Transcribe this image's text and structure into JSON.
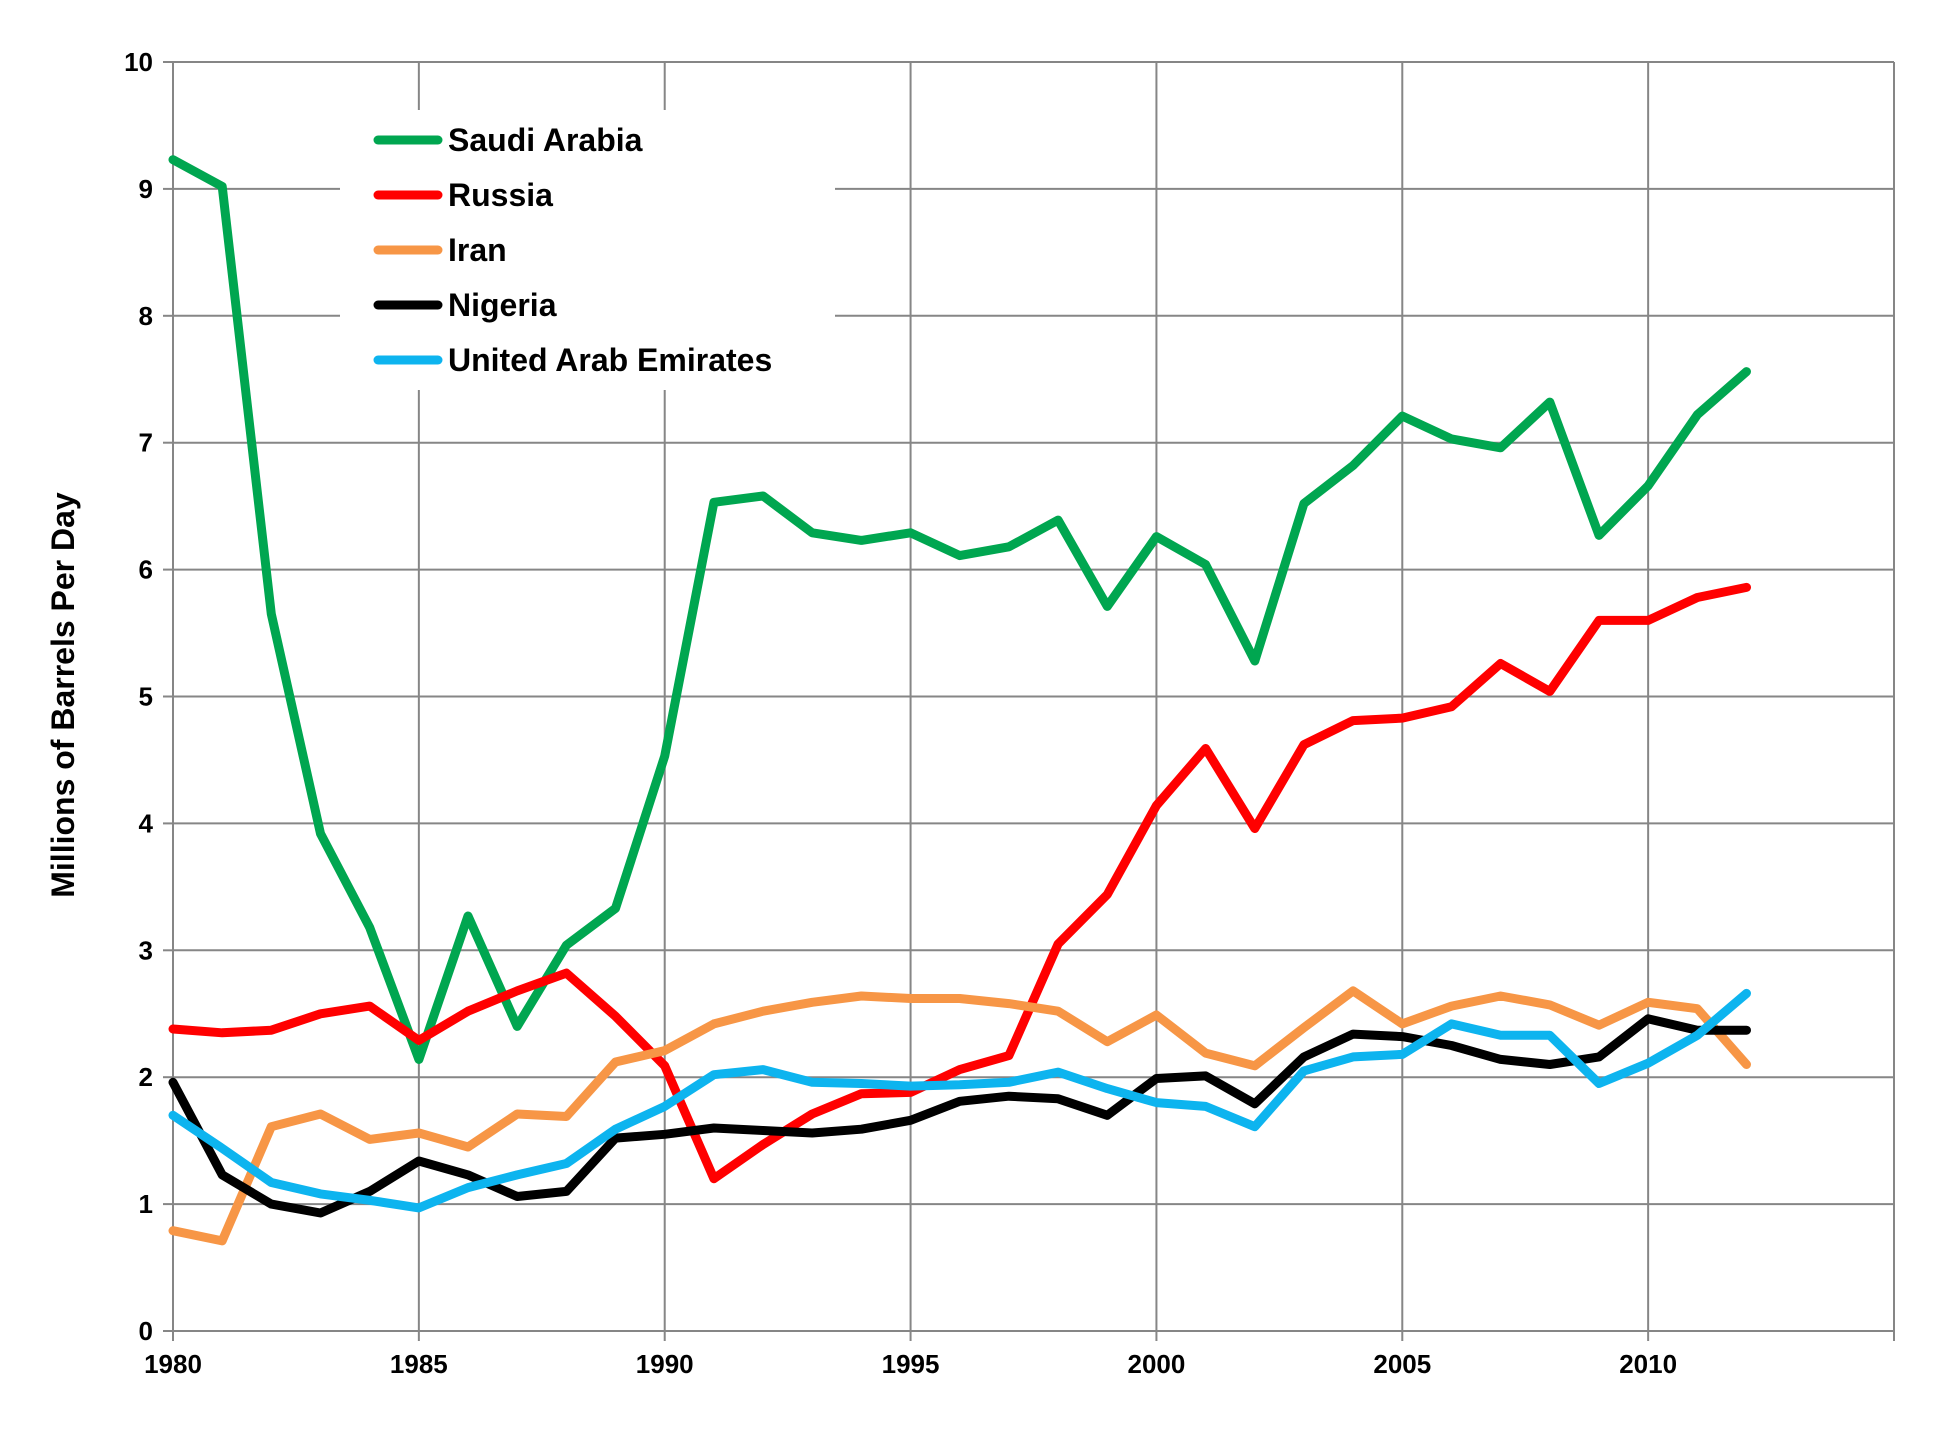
{
  "chart_data": {
    "type": "line",
    "ylabel": "Millions of Barrels Per Day",
    "xlabel": "",
    "xlim": [
      1980,
      2015
    ],
    "ylim": [
      0,
      10
    ],
    "x_ticks": [
      "1980",
      "1985",
      "1990",
      "1995",
      "2000",
      "2005",
      "2010"
    ],
    "y_ticks": [
      "0",
      "1",
      "2",
      "3",
      "4",
      "5",
      "6",
      "7",
      "8",
      "9",
      "10"
    ],
    "grid": true,
    "legend_position": "top-left",
    "x": [
      1980,
      1981,
      1982,
      1983,
      1984,
      1985,
      1986,
      1987,
      1988,
      1989,
      1990,
      1991,
      1992,
      1993,
      1994,
      1995,
      1996,
      1997,
      1998,
      1999,
      2000,
      2001,
      2002,
      2003,
      2004,
      2005,
      2006,
      2007,
      2008,
      2009,
      2010,
      2011,
      2012
    ],
    "series": [
      {
        "name": "Saudi Arabia",
        "color": "#00A650",
        "values": [
          9.23,
          9.02,
          5.65,
          3.92,
          3.18,
          2.14,
          3.27,
          2.4,
          3.04,
          3.33,
          4.53,
          6.53,
          6.58,
          6.29,
          6.23,
          6.29,
          6.11,
          6.18,
          6.39,
          5.71,
          6.26,
          6.04,
          5.28,
          6.52,
          6.82,
          7.21,
          7.03,
          6.96,
          7.32,
          6.27,
          6.66,
          7.22,
          7.56
        ]
      },
      {
        "name": "Russia",
        "color": "#FF0000",
        "values": [
          2.38,
          2.35,
          2.37,
          2.5,
          2.56,
          2.29,
          2.52,
          2.68,
          2.82,
          2.48,
          2.09,
          1.2,
          1.47,
          1.71,
          1.87,
          1.88,
          2.06,
          2.17,
          3.05,
          3.44,
          4.14,
          4.59,
          3.96,
          4.62,
          4.81,
          4.83,
          4.92,
          5.26,
          5.04,
          5.6,
          5.6,
          5.78,
          5.86
        ]
      },
      {
        "name": "Iran",
        "color": "#F79646",
        "values": [
          0.79,
          0.71,
          1.61,
          1.71,
          1.51,
          1.56,
          1.45,
          1.71,
          1.69,
          2.12,
          2.21,
          2.42,
          2.52,
          2.59,
          2.64,
          2.62,
          2.62,
          2.58,
          2.52,
          2.28,
          2.49,
          2.19,
          2.09,
          2.39,
          2.68,
          2.42,
          2.56,
          2.64,
          2.57,
          2.41,
          2.59,
          2.54,
          2.1
        ]
      },
      {
        "name": "Nigeria",
        "color": "#000000",
        "values": [
          1.96,
          1.23,
          1.0,
          0.93,
          1.1,
          1.34,
          1.23,
          1.06,
          1.1,
          1.52,
          1.55,
          1.6,
          1.58,
          1.56,
          1.59,
          1.66,
          1.81,
          1.85,
          1.83,
          1.7,
          1.99,
          2.01,
          1.79,
          2.16,
          2.34,
          2.32,
          2.25,
          2.14,
          2.1,
          2.16,
          2.46,
          2.37,
          2.37
        ]
      },
      {
        "name": "United Arab Emirates",
        "color": "#0DB4EF",
        "values": [
          1.7,
          1.44,
          1.17,
          1.08,
          1.03,
          0.97,
          1.13,
          1.23,
          1.32,
          1.59,
          1.77,
          2.02,
          2.06,
          1.96,
          1.95,
          1.93,
          1.94,
          1.96,
          2.04,
          1.91,
          1.8,
          1.77,
          1.61,
          2.05,
          2.16,
          2.18,
          2.42,
          2.33,
          2.33,
          1.95,
          2.11,
          2.33,
          2.66
        ]
      }
    ]
  }
}
